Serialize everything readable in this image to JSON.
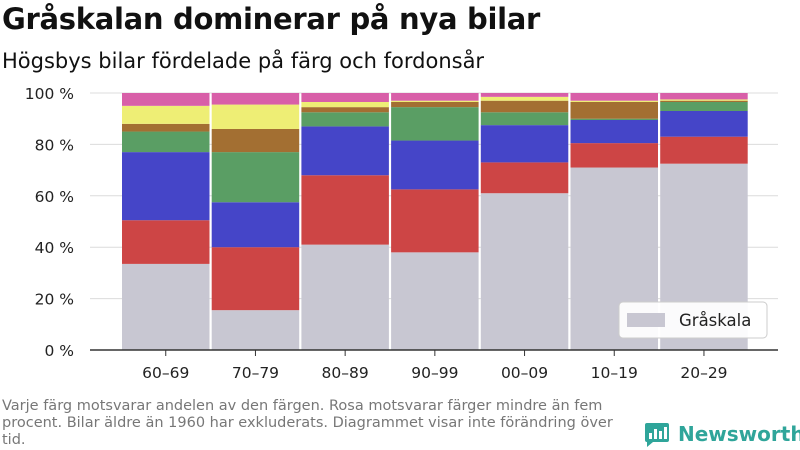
{
  "header": {
    "title": "Gråskalan dominerar på nya bilar",
    "subtitle": "Högsbys bilar fördelade på färg och fordonsår"
  },
  "footnote": "Varje färg motsvarar andelen av den färgen. Rosa motsvarar färger mindre än fem procent. Bilar äldre än 1960 har exkluderats. Diagrammet visar inte förändring över tid.",
  "brand": {
    "name": "Newsworthy",
    "color": "#2fa59a",
    "icon": "bar-chart-logo-icon"
  },
  "chart_data": {
    "type": "bar",
    "stacked": true,
    "normalized": true,
    "categories": [
      "60–69",
      "70–79",
      "80–89",
      "90–99",
      "00–09",
      "10–19",
      "20–29"
    ],
    "y_ticks": [
      "0 %",
      "20 %",
      "40 %",
      "60 %",
      "80 %",
      "100 %"
    ],
    "ylim": [
      0,
      100
    ],
    "grid": true,
    "legend": {
      "position": "bottom-right",
      "entries": [
        "Gråskala"
      ]
    },
    "series": [
      {
        "name": "Gråskala",
        "color": "#c8c7d2",
        "values": [
          33.5,
          15.5,
          41,
          38,
          61,
          71,
          72.5
        ]
      },
      {
        "color": "#cd4545",
        "values": [
          17,
          24.5,
          27,
          24.5,
          12,
          9.5,
          10.5
        ]
      },
      {
        "color": "#4545c8",
        "values": [
          26.5,
          17.5,
          19,
          19,
          14.5,
          9,
          10
        ]
      },
      {
        "color": "#5a9e64",
        "values": [
          8,
          19.5,
          5.5,
          13,
          5,
          0.5,
          3.5
        ]
      },
      {
        "color": "#a36f32",
        "values": [
          3,
          9,
          2,
          2,
          4.5,
          6.5,
          0.5
        ]
      },
      {
        "color": "#eeee75",
        "values": [
          7,
          9.5,
          2,
          0.5,
          1.5,
          0.5,
          0.5
        ]
      },
      {
        "color": "#d85fa8",
        "values": [
          5,
          4.5,
          3.5,
          3,
          1.5,
          3,
          2.5
        ]
      }
    ]
  }
}
